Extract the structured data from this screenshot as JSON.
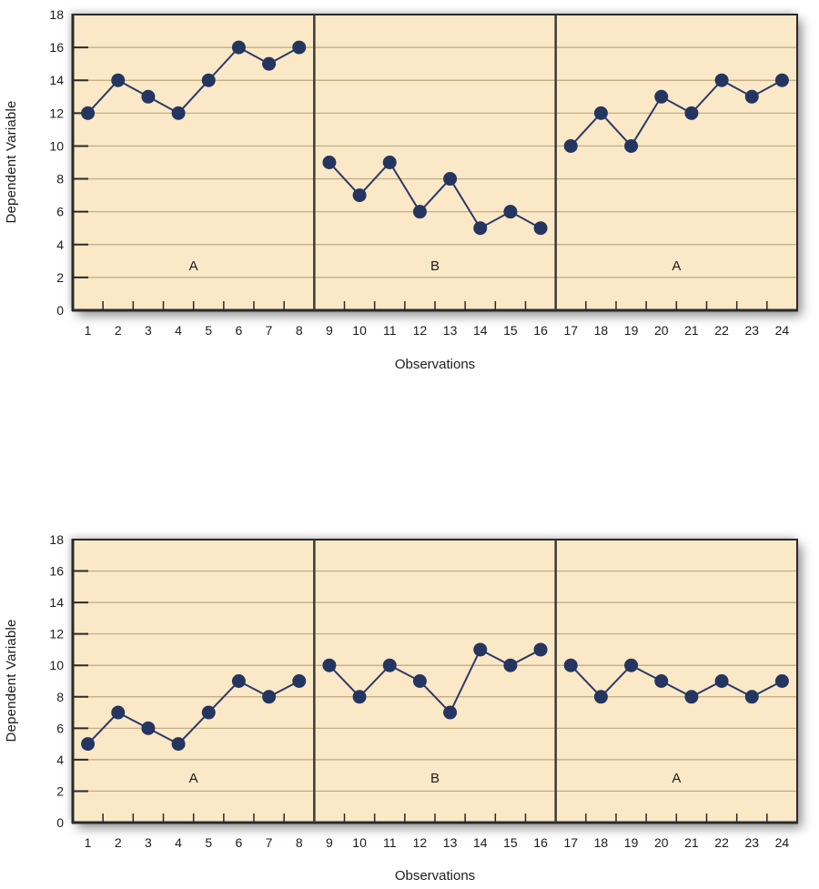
{
  "figure": {
    "y_axis_title": "Dependent Variable",
    "x_axis_title": "Observations"
  },
  "colors": {
    "plot_bg": "#FAE8C7",
    "grid": "#BEA77D",
    "axis": "#2a2a2a",
    "separator": "#3b3b3b",
    "line": "#2c3a66",
    "point": "#243560",
    "text": "#1c1c1c",
    "page_bg": "#ffffff"
  },
  "chart_data": [
    {
      "type": "line",
      "title": "",
      "xlabel": "Observations",
      "ylabel": "Dependent Variable",
      "ylim": [
        0,
        18
      ],
      "ytick_step": 2,
      "grid": true,
      "legend": "none",
      "x": [
        1,
        2,
        3,
        4,
        5,
        6,
        7,
        8,
        9,
        10,
        11,
        12,
        13,
        14,
        15,
        16,
        17,
        18,
        19,
        20,
        21,
        22,
        23,
        24
      ],
      "values": [
        12,
        14,
        13,
        12,
        14,
        16,
        15,
        16,
        9,
        7,
        9,
        6,
        8,
        5,
        6,
        5,
        10,
        12,
        10,
        13,
        12,
        14,
        13,
        14
      ],
      "panels": [
        {
          "label": "A",
          "start": 1,
          "end": 8
        },
        {
          "label": "B",
          "start": 9,
          "end": 16
        },
        {
          "label": "A",
          "start": 17,
          "end": 24
        }
      ]
    },
    {
      "type": "line",
      "title": "",
      "xlabel": "Observations",
      "ylabel": "Dependent Variable",
      "ylim": [
        0,
        18
      ],
      "ytick_step": 2,
      "grid": true,
      "legend": "none",
      "x": [
        1,
        2,
        3,
        4,
        5,
        6,
        7,
        8,
        9,
        10,
        11,
        12,
        13,
        14,
        15,
        16,
        17,
        18,
        19,
        20,
        21,
        22,
        23,
        24
      ],
      "values": [
        5,
        7,
        6,
        5,
        7,
        9,
        8,
        9,
        10,
        8,
        10,
        9,
        7,
        11,
        10,
        11,
        10,
        8,
        10,
        9,
        8,
        9,
        8,
        9
      ],
      "panels": [
        {
          "label": "A",
          "start": 1,
          "end": 8
        },
        {
          "label": "B",
          "start": 9,
          "end": 16
        },
        {
          "label": "A",
          "start": 17,
          "end": 24
        }
      ]
    }
  ]
}
